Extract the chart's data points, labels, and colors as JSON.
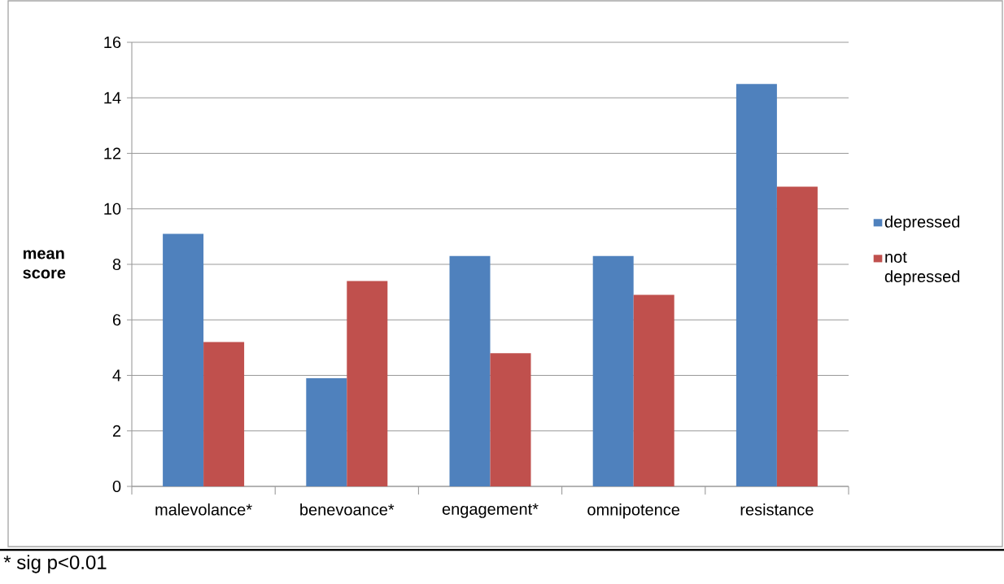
{
  "chart_data": {
    "type": "bar",
    "ylabel": "mean score",
    "categories": [
      "malevolance*",
      "benevoance*",
      "engagement*",
      "omnipotence",
      "resistance"
    ],
    "series": [
      {
        "name": "depressed",
        "color": "#4f81bd",
        "values": [
          9.1,
          3.9,
          8.3,
          8.3,
          14.5
        ]
      },
      {
        "name": "not depressed",
        "color": "#c0504d",
        "values": [
          5.2,
          7.4,
          4.8,
          6.9,
          10.8
        ]
      }
    ],
    "ylim": [
      0,
      16
    ],
    "yticks": [
      0,
      2,
      4,
      6,
      8,
      10,
      12,
      14,
      16
    ],
    "grid": "y",
    "legend": "right",
    "annotations": [
      "* sig p<0.01"
    ]
  }
}
